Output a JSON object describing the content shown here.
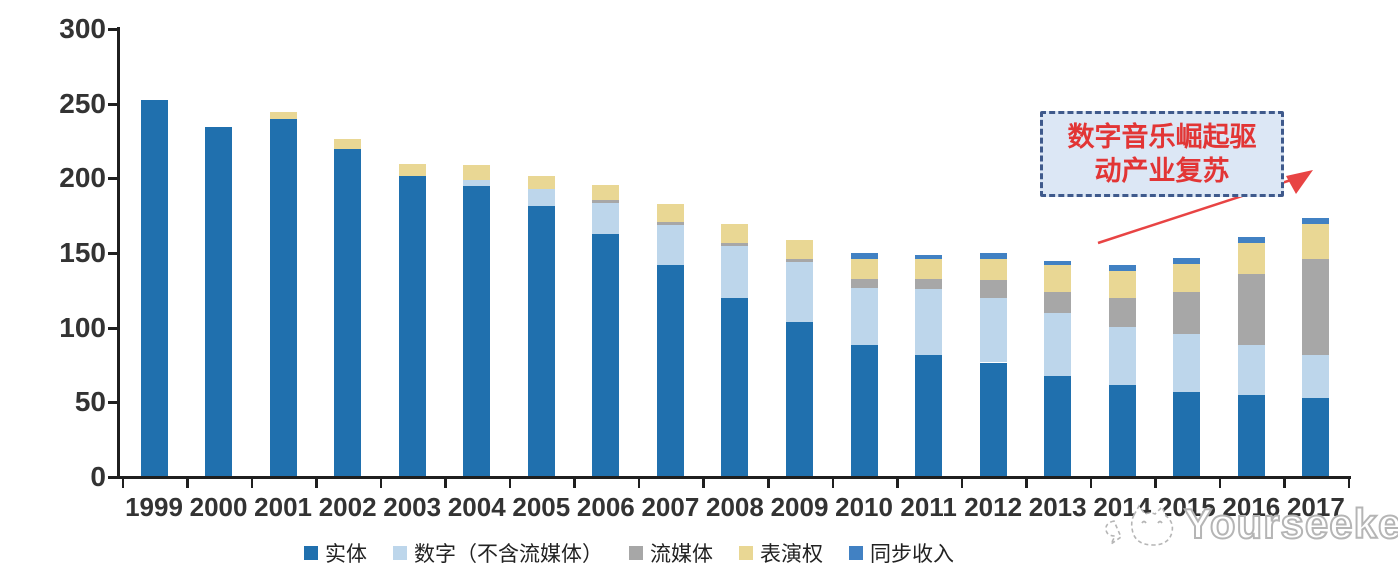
{
  "chart_data": {
    "type": "bar",
    "stacked": true,
    "title": "",
    "xlabel": "",
    "ylabel": "",
    "categories": [
      "1999",
      "2000",
      "2001",
      "2002",
      "2003",
      "2004",
      "2005",
      "2006",
      "2007",
      "2008",
      "2009",
      "2010",
      "2011",
      "2012",
      "2013",
      "2014",
      "2015",
      "2016",
      "2017"
    ],
    "series": [
      {
        "key": "physical",
        "label": "实体",
        "color": "#2070AE",
        "values": [
          252,
          234,
          239,
          219,
          201,
          194,
          181,
          162,
          141,
          119,
          103,
          88,
          81,
          76,
          67,
          61,
          56,
          54,
          52
        ]
      },
      {
        "key": "digital-excl-streaming",
        "label": "数字（不含流媒体）",
        "color": "#BDD6EB",
        "values": [
          0,
          0,
          0,
          0,
          0,
          4,
          11,
          21,
          27,
          35,
          40,
          38,
          44,
          43,
          42,
          39,
          39,
          34,
          29
        ]
      },
      {
        "key": "streaming",
        "label": "流媒体",
        "color": "#A7A7A7",
        "values": [
          0,
          0,
          0,
          0,
          0,
          0,
          0,
          2,
          2,
          2,
          2,
          6,
          7,
          12,
          14,
          19,
          28,
          47,
          64
        ]
      },
      {
        "key": "performance-rights",
        "label": "表演权",
        "color": "#E9D794",
        "values": [
          0,
          0,
          5,
          7,
          8,
          10,
          9,
          10,
          12,
          13,
          13,
          13,
          13,
          14,
          18,
          18,
          19,
          21,
          24
        ]
      },
      {
        "key": "sync-revenue",
        "label": "同步收入",
        "color": "#4181C3",
        "values": [
          0,
          0,
          0,
          0,
          0,
          0,
          0,
          0,
          0,
          0,
          0,
          4,
          3,
          4,
          3,
          4,
          4,
          4,
          4
        ]
      }
    ],
    "ylim": [
      0,
      300
    ],
    "yticks": [
      0,
      50,
      100,
      150,
      200,
      250,
      300
    ],
    "grid": false,
    "legend_position": "bottom"
  },
  "annotation": {
    "line1": "数字音乐崛起驱",
    "line2": "动产业复苏"
  },
  "watermark": {
    "text": "Yourseeker"
  },
  "colors": {
    "axis": "#1f1f1f",
    "tick_label": "#333333",
    "annotation_fill": "#DCE7F5",
    "annotation_border": "#3F5A8C",
    "annotation_text": "#E23535",
    "arrow": "#E84444",
    "watermark_gray": "#B5B5B5"
  }
}
